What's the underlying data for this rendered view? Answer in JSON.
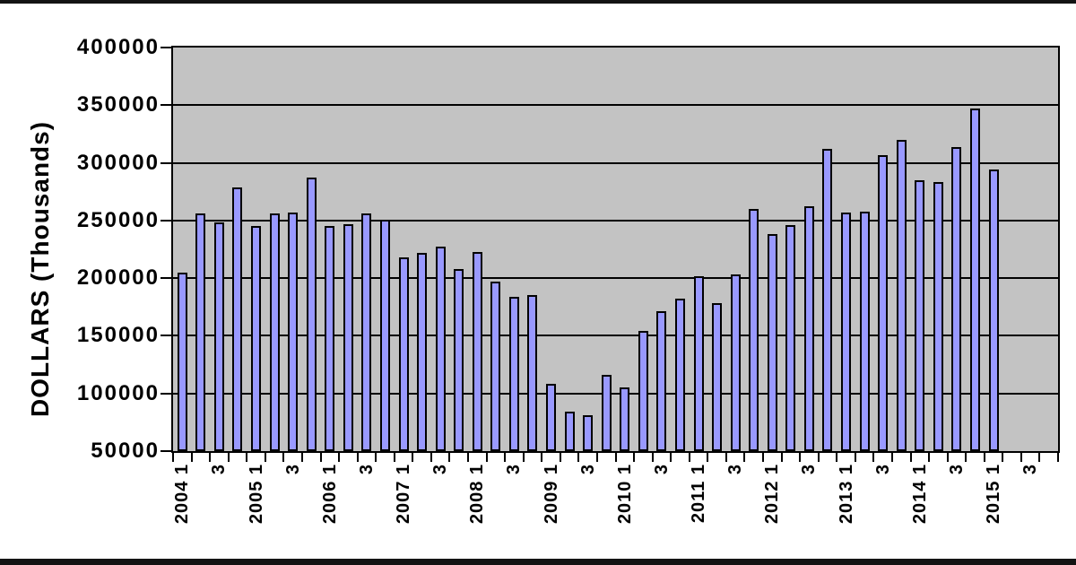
{
  "page": {
    "background": "#ffffff"
  },
  "colors": {
    "frame_bar": "#131313",
    "plot_bg": "#c3c3c3",
    "grid_line": "#000000",
    "bar_fill": "#9999ff",
    "bar_border": "#000000",
    "text": "#000000"
  },
  "chart_data": {
    "type": "bar",
    "title": "",
    "xlabel": "",
    "ylabel": "DOLLARS (Thousands)",
    "ylim": [
      50000,
      400000
    ],
    "y_tick_interval": 50000,
    "y_tick_labels": [
      "400000",
      "350000",
      "300000",
      "250000",
      "200000",
      "150000",
      "100000",
      "50000"
    ],
    "grid": true,
    "legend_position": "none",
    "bar_baseline": 50000,
    "categories": [
      "2004 1",
      "",
      "3",
      "",
      "2005 1",
      "",
      "3",
      "",
      "2006 1",
      "",
      "3",
      "",
      "2007 1",
      "",
      "3",
      "",
      "2008 1",
      "",
      "3",
      "",
      "2009 1",
      "",
      "3",
      "",
      "2010 1",
      "",
      "3",
      "",
      "2011 1",
      "",
      "3",
      "",
      "2012 1",
      "",
      "3",
      "",
      "2013 1",
      "",
      "3",
      "",
      "2014 1",
      "",
      "3",
      "",
      "2015 1",
      "",
      "3",
      ""
    ],
    "quarters": [
      "2004 Q1",
      "2004 Q2",
      "2004 Q3",
      "2004 Q4",
      "2005 Q1",
      "2005 Q2",
      "2005 Q3",
      "2005 Q4",
      "2006 Q1",
      "2006 Q2",
      "2006 Q3",
      "2006 Q4",
      "2007 Q1",
      "2007 Q2",
      "2007 Q3",
      "2007 Q4",
      "2008 Q1",
      "2008 Q2",
      "2008 Q3",
      "2008 Q4",
      "2009 Q1",
      "2009 Q2",
      "2009 Q3",
      "2009 Q4",
      "2010 Q1",
      "2010 Q2",
      "2010 Q3",
      "2010 Q4",
      "2011 Q1",
      "2011 Q2",
      "2011 Q3",
      "2011 Q4",
      "2012 Q1",
      "2012 Q2",
      "2012 Q3",
      "2012 Q4",
      "2013 Q1",
      "2013 Q2",
      "2013 Q3",
      "2013 Q4",
      "2014 Q1",
      "2014 Q2",
      "2014 Q3",
      "2014 Q4",
      "2015 Q1"
    ],
    "values": [
      205000,
      256000,
      248000,
      279000,
      245000,
      256000,
      257000,
      287000,
      245000,
      247000,
      256000,
      251000,
      218000,
      222000,
      227000,
      208000,
      223000,
      197000,
      184000,
      185000,
      108000,
      84000,
      81000,
      116000,
      105000,
      154000,
      171000,
      182000,
      202000,
      178000,
      203000,
      260000,
      238000,
      246000,
      262000,
      312000,
      257000,
      258000,
      307000,
      320000,
      285000,
      283000,
      314000,
      347000,
      294000
    ]
  }
}
